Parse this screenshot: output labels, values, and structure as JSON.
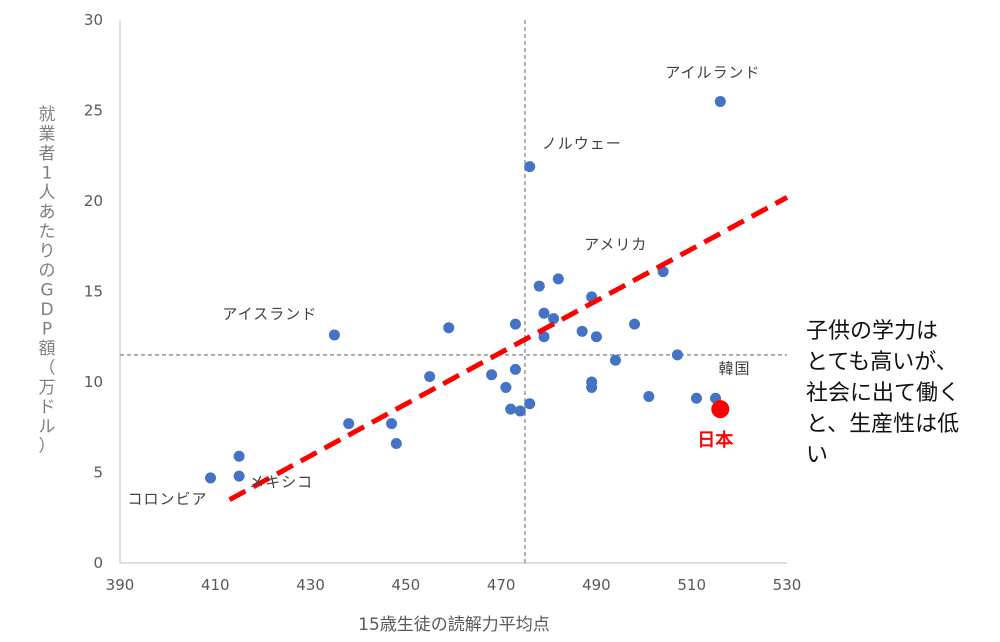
{
  "chart_data": {
    "type": "scatter",
    "xlabel": "15歳生徒の読解力平均点",
    "ylabel": "就業者1人あたりのGDP額（万ドル）",
    "xlim": [
      390,
      530
    ],
    "ylim": [
      0,
      30
    ],
    "x_ticks": [
      "390",
      "410",
      "430",
      "450",
      "470",
      "490",
      "510",
      "530"
    ],
    "y_ticks": [
      "0",
      "5",
      "10",
      "15",
      "20",
      "25",
      "30"
    ],
    "point_color": "#4472c4",
    "highlight_color": "#ff0000",
    "reference_lines": {
      "x": 475,
      "y": 11.5
    },
    "trend_line": {
      "color": "#ff0000",
      "from": [
        413,
        3.5
      ],
      "to": [
        530,
        20.2
      ]
    },
    "points": [
      {
        "x": 409,
        "y": 4.7
      },
      {
        "x": 415,
        "y": 4.8
      },
      {
        "x": 415,
        "y": 5.9
      },
      {
        "x": 435,
        "y": 12.6
      },
      {
        "x": 438,
        "y": 7.7
      },
      {
        "x": 447,
        "y": 7.7
      },
      {
        "x": 448,
        "y": 6.6
      },
      {
        "x": 455,
        "y": 10.3
      },
      {
        "x": 459,
        "y": 13.0
      },
      {
        "x": 468,
        "y": 10.4
      },
      {
        "x": 471,
        "y": 9.7
      },
      {
        "x": 472,
        "y": 8.5
      },
      {
        "x": 473,
        "y": 13.2
      },
      {
        "x": 473,
        "y": 10.7
      },
      {
        "x": 474,
        "y": 8.4
      },
      {
        "x": 476,
        "y": 21.9
      },
      {
        "x": 476,
        "y": 8.8
      },
      {
        "x": 478,
        "y": 15.3
      },
      {
        "x": 479,
        "y": 12.5
      },
      {
        "x": 479,
        "y": 13.8
      },
      {
        "x": 481,
        "y": 13.5
      },
      {
        "x": 482,
        "y": 15.7
      },
      {
        "x": 487,
        "y": 12.8
      },
      {
        "x": 489,
        "y": 14.7
      },
      {
        "x": 489,
        "y": 10.0
      },
      {
        "x": 489,
        "y": 9.7
      },
      {
        "x": 490,
        "y": 12.5
      },
      {
        "x": 494,
        "y": 11.2
      },
      {
        "x": 498,
        "y": 13.2
      },
      {
        "x": 501,
        "y": 9.2
      },
      {
        "x": 504,
        "y": 16.1
      },
      {
        "x": 507,
        "y": 11.5
      },
      {
        "x": 511,
        "y": 9.1
      },
      {
        "x": 515,
        "y": 9.1
      },
      {
        "x": 516,
        "y": 25.5
      }
    ],
    "highlight_point": {
      "x": 516,
      "y": 8.5,
      "label": "日本"
    },
    "annotations": [
      {
        "text": "アイルランド",
        "x": 516,
        "y": 25.5
      },
      {
        "text": "ノルウェー",
        "x": 476,
        "y": 21.9
      },
      {
        "text": "アメリカ",
        "x": 504,
        "y": 16.1
      },
      {
        "text": "アイスランド",
        "x": 435,
        "y": 12.6
      },
      {
        "text": "韓国",
        "x": 515,
        "y": 9.1
      },
      {
        "text": "メキシコ",
        "x": 415,
        "y": 4.8
      },
      {
        "text": "コロンビア",
        "x": 409,
        "y": 4.7
      }
    ]
  },
  "side_note": "子供の学力は\nとても高いが、\n社会に出て働く\nと、生産性は低\nい"
}
